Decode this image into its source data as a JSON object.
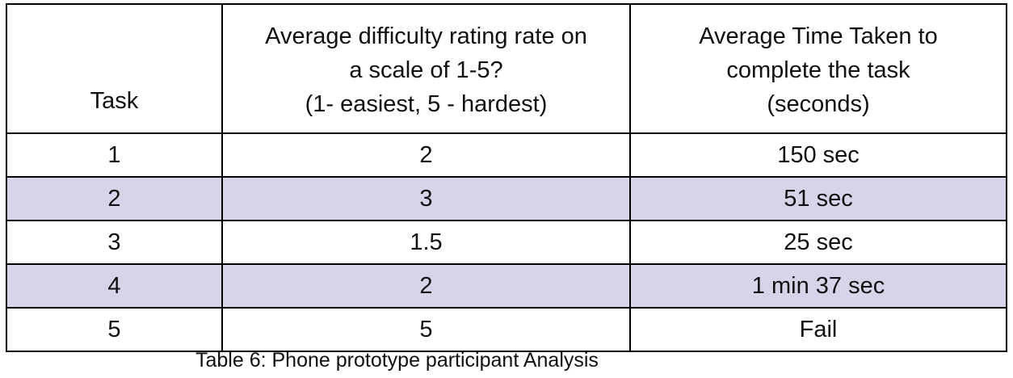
{
  "table": {
    "headers": {
      "task": "Task",
      "difficulty": {
        "line1": "Average difficulty rating rate on",
        "line2": "a scale of 1-5?",
        "line3": "(1- easiest, 5 - hardest)"
      },
      "time": {
        "line1": "Average Time Taken to",
        "line2": "complete the task",
        "line3": "(seconds)"
      }
    },
    "rows": [
      {
        "task": "1",
        "difficulty": "2",
        "time": "150 sec"
      },
      {
        "task": "2",
        "difficulty": "3",
        "time": "51 sec"
      },
      {
        "task": "3",
        "difficulty": "1.5",
        "time": "25 sec"
      },
      {
        "task": "4",
        "difficulty": "2",
        "time": "1 min 37 sec"
      },
      {
        "task": "5",
        "difficulty": "5",
        "time": "Fail"
      }
    ],
    "shaded_row_color": "#d9d3e9"
  },
  "caption": "Table 6: Phone prototype participant Analysis"
}
